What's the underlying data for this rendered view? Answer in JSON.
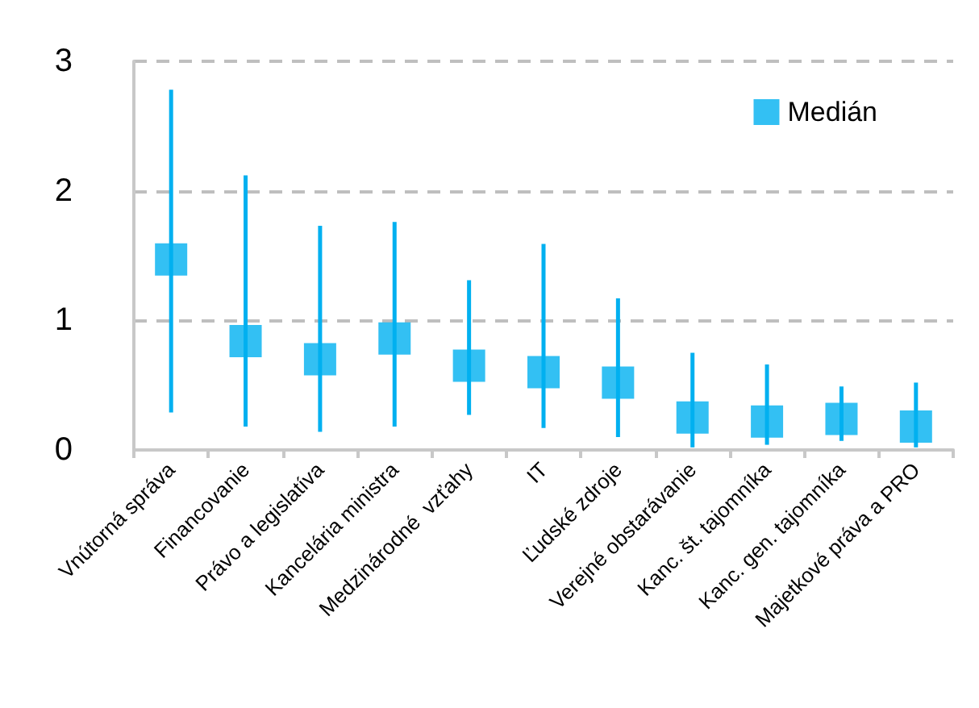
{
  "chart_data": {
    "type": "scatter",
    "categories": [
      "Vnútorná správa",
      "Financovanie",
      "Právo a legislatíva",
      "Kancelária ministra",
      "Medzinárodné  vzťahy",
      "IT",
      "Ľudské zdroje",
      "Verejné obstarávanie",
      "Kanc. št. tajomníka",
      "Kanc. gen. tajomníka",
      "Majetkové práva a PRO"
    ],
    "series": [
      {
        "name": "Medián",
        "color": "#00b0f0",
        "values": [
          1.47,
          0.84,
          0.7,
          0.86,
          0.65,
          0.6,
          0.52,
          0.25,
          0.22,
          0.24,
          0.18
        ],
        "errors": [
          [
            0.29,
            2.78
          ],
          [
            0.18,
            2.12
          ],
          [
            0.14,
            1.73
          ],
          [
            0.18,
            1.76
          ],
          [
            0.27,
            1.31
          ],
          [
            0.17,
            1.59
          ],
          [
            0.1,
            1.17
          ],
          [
            0.02,
            0.75
          ],
          [
            0.04,
            0.66
          ],
          [
            0.07,
            0.49
          ],
          [
            0.02,
            0.52
          ]
        ]
      }
    ],
    "ylim": [
      0,
      3
    ],
    "yticks": [
      0,
      1,
      2,
      3
    ],
    "grid": "y",
    "legend": "top right",
    "marker": "square"
  }
}
